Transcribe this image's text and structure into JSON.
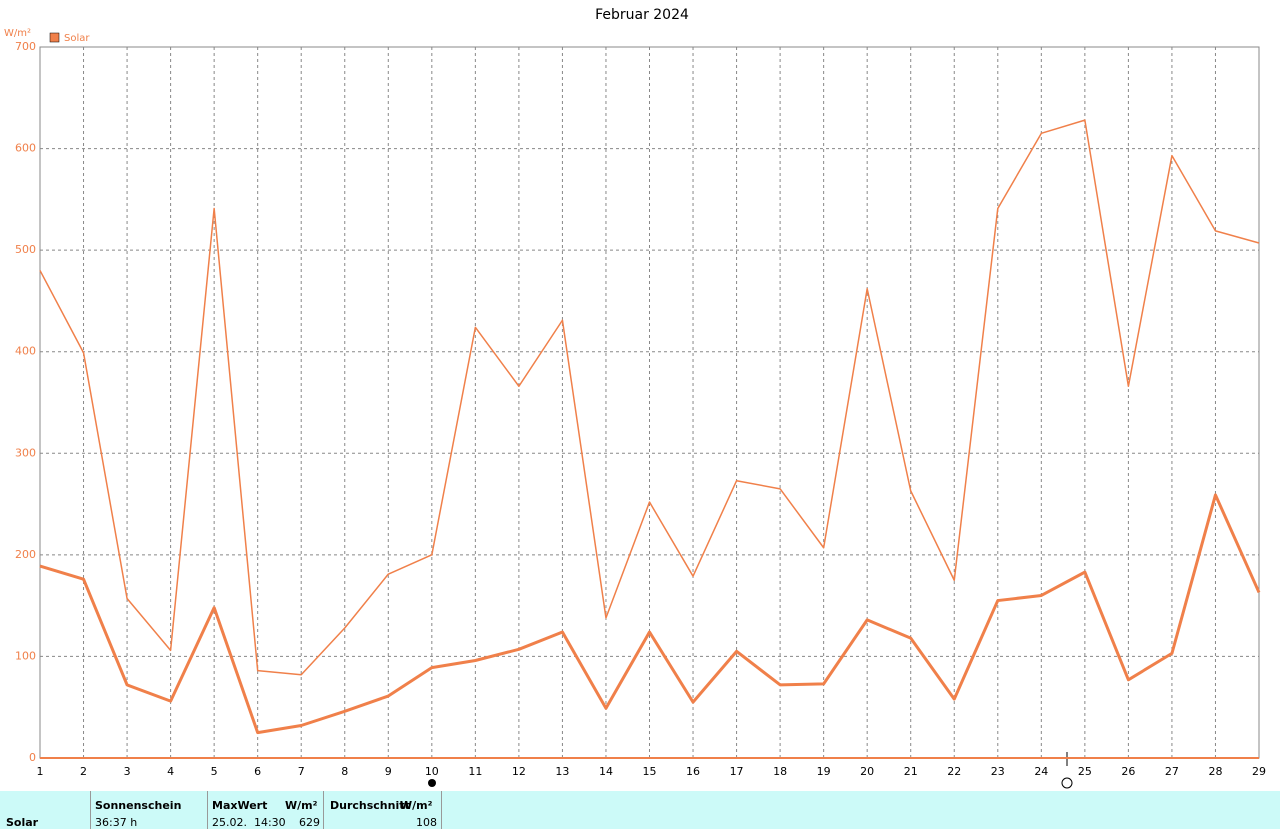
{
  "chart_data": {
    "type": "line",
    "title": "Februar 2024",
    "y_label": "W/m²",
    "x": [
      1,
      2,
      3,
      4,
      5,
      6,
      7,
      8,
      9,
      10,
      11,
      12,
      13,
      14,
      15,
      16,
      17,
      18,
      19,
      20,
      21,
      22,
      23,
      24,
      25,
      26,
      27,
      28,
      29
    ],
    "xlim": [
      1,
      29
    ],
    "xticks": [
      1,
      2,
      3,
      4,
      5,
      6,
      7,
      8,
      9,
      10,
      11,
      12,
      13,
      14,
      15,
      16,
      17,
      18,
      19,
      20,
      21,
      22,
      23,
      24,
      25,
      26,
      27,
      28,
      29
    ],
    "ylim": [
      0,
      700
    ],
    "yticks": [
      0,
      100,
      200,
      300,
      400,
      500,
      600,
      700
    ],
    "grid": true,
    "series": [
      {
        "name": "Solar",
        "color": "#f0804a",
        "width": 1.5,
        "values": [
          480,
          399,
          157,
          106,
          541,
          86,
          82,
          128,
          181,
          200,
          424,
          366,
          431,
          138,
          252,
          179,
          273,
          265,
          207,
          462,
          263,
          175,
          541,
          615,
          628,
          366,
          593,
          519,
          507
        ]
      },
      {
        "color": "#f0804a",
        "width": 3,
        "values": [
          189,
          176,
          72,
          56,
          148,
          25,
          32,
          46,
          61,
          89,
          96,
          107,
          124,
          49,
          124,
          55,
          105,
          72,
          73,
          136,
          118,
          58,
          155,
          160,
          183,
          77,
          103,
          259,
          163
        ]
      }
    ]
  },
  "table": {
    "headers": [
      "Sonnenschein",
      "MaxWert",
      "W/m²",
      "Durchschnitt",
      "W/m²"
    ],
    "row_label": "Solar",
    "cells": [
      "36:37 h",
      "25.02.  14:30",
      629,
      108
    ]
  }
}
